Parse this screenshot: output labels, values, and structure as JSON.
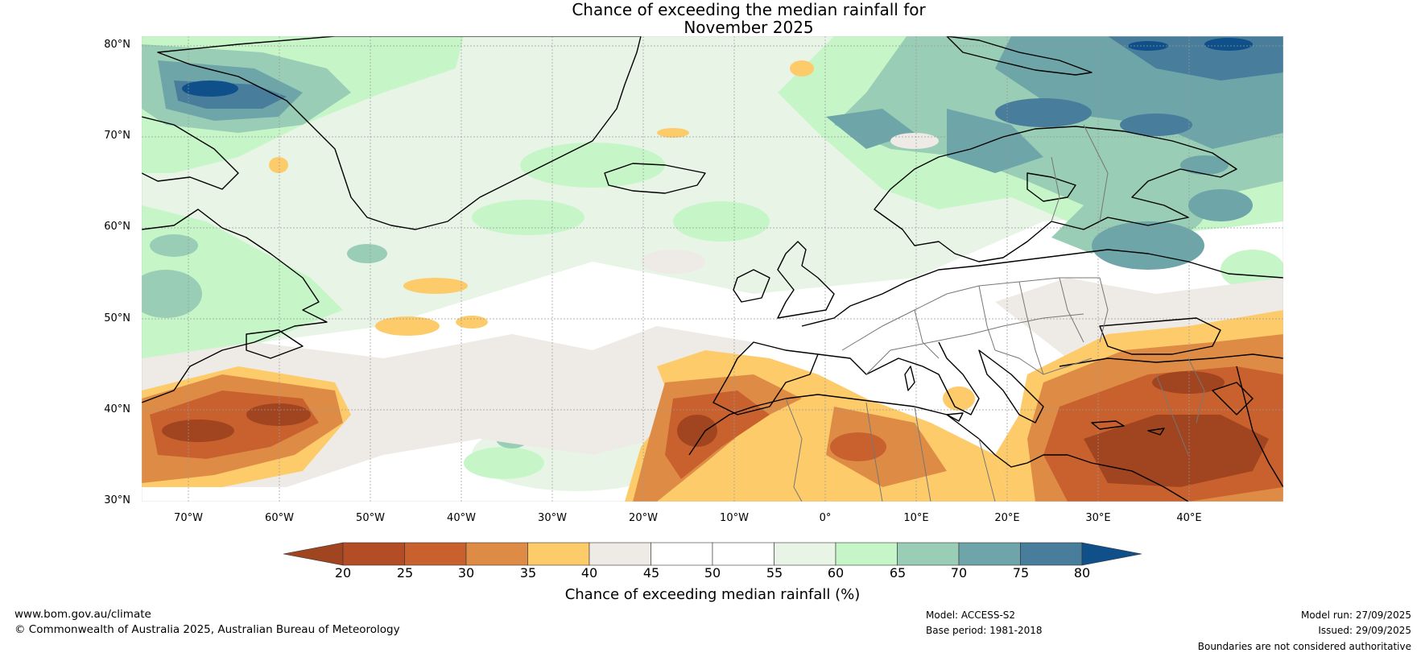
{
  "title": {
    "line1": "Chance of exceeding the median rainfall for",
    "line2": "November 2025"
  },
  "map": {
    "latitude_labels": [
      "80°N",
      "70°N",
      "60°N",
      "50°N",
      "40°N",
      "30°N"
    ],
    "longitude_labels": [
      "70°W",
      "60°W",
      "50°W",
      "40°W",
      "30°W",
      "20°W",
      "10°W",
      "0°",
      "10°E",
      "20°E",
      "30°E",
      "40°E"
    ]
  },
  "colorbar": {
    "ticks": [
      "20",
      "25",
      "30",
      "35",
      "40",
      "45",
      "50",
      "55",
      "60",
      "65",
      "70",
      "75",
      "80"
    ],
    "colors": [
      "#a0451f",
      "#b34d26",
      "#c9612f",
      "#de8c45",
      "#fecb6a",
      "#eeeae5",
      "#ffffff",
      "#ffffff",
      "#e8f5e6",
      "#c6f6c8",
      "#99cdb6",
      "#6ea5a8",
      "#487d9c",
      "#0f4f8a"
    ],
    "label": "Chance of exceeding median rainfall (%)"
  },
  "footer": {
    "website": "www.bom.gov.au/climate",
    "copyright": "© Commonwealth of Australia 2025, Australian Bureau of Meteorology",
    "model": "Model: ACCESS-S2",
    "base_period": "Base period: 1981-2018",
    "model_run": "Model run: 27/09/2025",
    "issued": "Issued: 29/09/2025",
    "disclaimer": "Boundaries are not considered authoritative"
  }
}
